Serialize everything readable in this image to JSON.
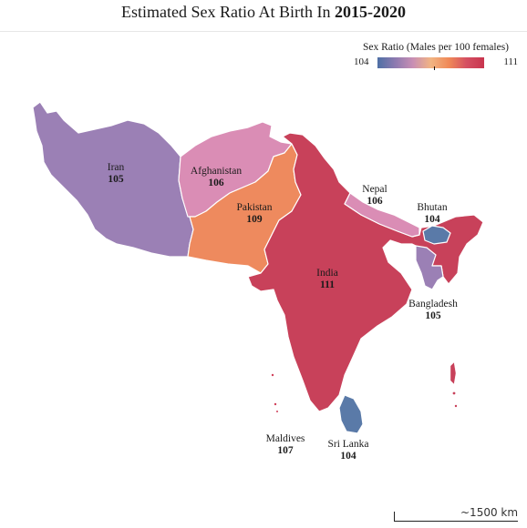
{
  "title": {
    "prefix": "Estimated Sex Ratio At Birth In ",
    "period": "2015-2020"
  },
  "legend": {
    "title": "Sex Ratio (Males per 100 females)",
    "min": "104",
    "max": "111",
    "colors": [
      "#4e6fa5",
      "#8d7ab0",
      "#c98fb4",
      "#f1b483",
      "#f08a58",
      "#d55062",
      "#c8344e"
    ]
  },
  "countries": [
    {
      "id": "iran",
      "name": "Iran",
      "value": "105",
      "color": "#9b80b5"
    },
    {
      "id": "afghanistan",
      "name": "Afghanistan",
      "value": "106",
      "color": "#da8db5"
    },
    {
      "id": "pakistan",
      "name": "Pakistan",
      "value": "109",
      "color": "#ee8a5e"
    },
    {
      "id": "india",
      "name": "India",
      "value": "111",
      "color": "#c8415a"
    },
    {
      "id": "nepal",
      "name": "Nepal",
      "value": "106",
      "color": "#da8db5"
    },
    {
      "id": "bhutan",
      "name": "Bhutan",
      "value": "104",
      "color": "#5a7aa8"
    },
    {
      "id": "bangladesh",
      "name": "Bangladesh",
      "value": "105",
      "color": "#9b80b5"
    },
    {
      "id": "srilanka",
      "name": "Sri Lanka",
      "value": "104",
      "color": "#5a7aa8"
    },
    {
      "id": "maldives",
      "name": "Maldives",
      "value": "107",
      "color": "#d0405a"
    }
  ],
  "scale_bar": "~1500 km"
}
